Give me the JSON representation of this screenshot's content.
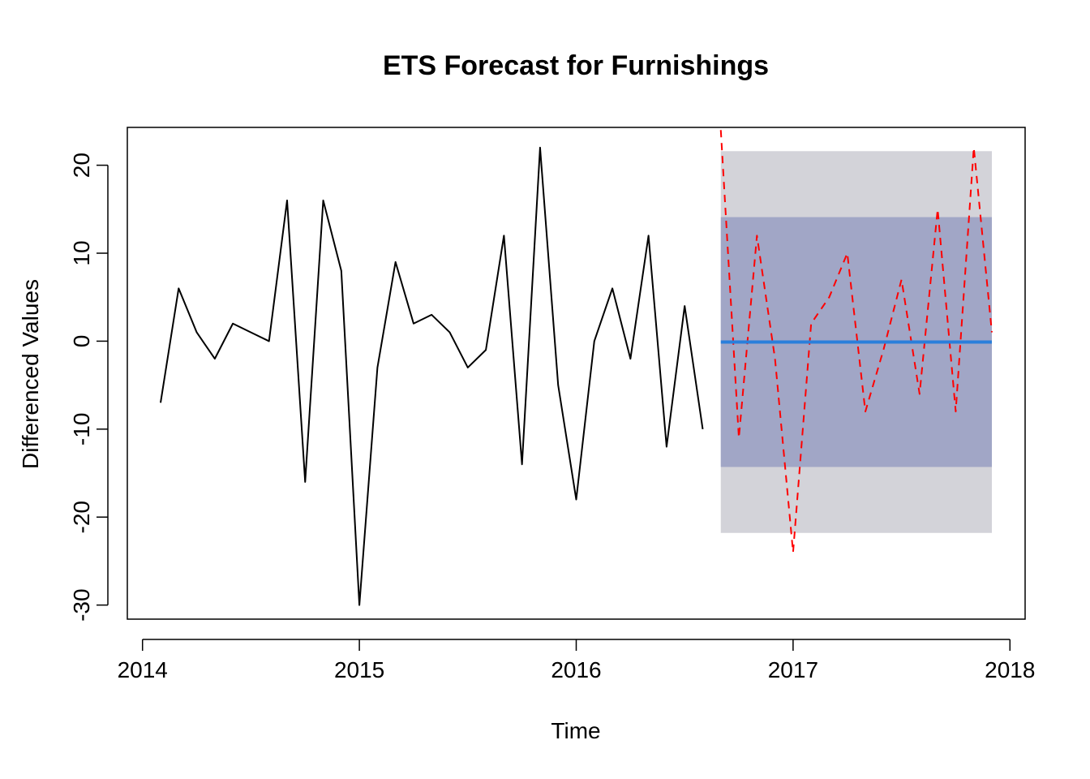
{
  "chart_data": {
    "type": "line",
    "title": "ETS Forecast for Furnishings",
    "xlabel": "Time",
    "ylabel": "Differenced Values",
    "xlim": [
      2013.93,
      2018.07
    ],
    "ylim": [
      -31.6,
      24.3
    ],
    "x_ticks": [
      2014,
      2015,
      2016,
      2017,
      2018
    ],
    "y_ticks": [
      -30,
      -20,
      -10,
      0,
      10,
      20
    ],
    "x_tick_labels": [
      "2014",
      "2015",
      "2016",
      "2017",
      "2018"
    ],
    "y_tick_labels": [
      "-30",
      "-20",
      "-10",
      "0",
      "10",
      "20"
    ],
    "grid": false,
    "legend": "none",
    "series": [
      {
        "role": "observed",
        "color": "#000000",
        "style": "solid",
        "x": [
          "2014-02",
          "2014-03",
          "2014-04",
          "2014-05",
          "2014-06",
          "2014-07",
          "2014-08",
          "2014-09",
          "2014-10",
          "2014-11",
          "2014-12",
          "2015-01",
          "2015-02",
          "2015-03",
          "2015-04",
          "2015-05",
          "2015-06",
          "2015-07",
          "2015-08",
          "2015-09",
          "2015-10",
          "2015-11",
          "2015-12",
          "2016-01",
          "2016-02",
          "2016-03",
          "2016-04",
          "2016-05",
          "2016-06",
          "2016-07",
          "2016-08"
        ],
        "values": [
          -7,
          6,
          1,
          -2,
          2,
          1,
          0,
          16,
          -16,
          16,
          8,
          -30,
          -3,
          9,
          2,
          3,
          1,
          -3,
          -1,
          12,
          -14,
          22,
          -5,
          -18,
          0,
          6,
          -2,
          12,
          -12,
          4,
          -10
        ]
      },
      {
        "role": "actual",
        "color": "#ff0000",
        "style": "dashed",
        "x": [
          "2016-09",
          "2016-10",
          "2016-11",
          "2016-12",
          "2017-01",
          "2017-02",
          "2017-03",
          "2017-04",
          "2017-05",
          "2017-06",
          "2017-07",
          "2017-08",
          "2017-09",
          "2017-10",
          "2017-11",
          "2017-12"
        ],
        "values": [
          24,
          -11,
          12,
          -2,
          -24,
          2,
          5,
          10,
          -8,
          -1,
          7,
          -6,
          15,
          -8,
          22,
          1
        ]
      },
      {
        "role": "point forecast",
        "color": "#2a7fdb",
        "style": "solid",
        "x": [
          "2016-09",
          "2017-12"
        ],
        "values": [
          -0.1,
          -0.1
        ]
      }
    ],
    "intervals": [
      {
        "level": 95,
        "color": "#d3d3d9",
        "x": [
          "2016-09",
          "2017-12"
        ],
        "lower": -21.8,
        "upper": 21.6
      },
      {
        "level": 80,
        "color": "#a1a6c6",
        "x": [
          "2016-09",
          "2017-12"
        ],
        "lower": -14.3,
        "upper": 14.1
      }
    ]
  }
}
